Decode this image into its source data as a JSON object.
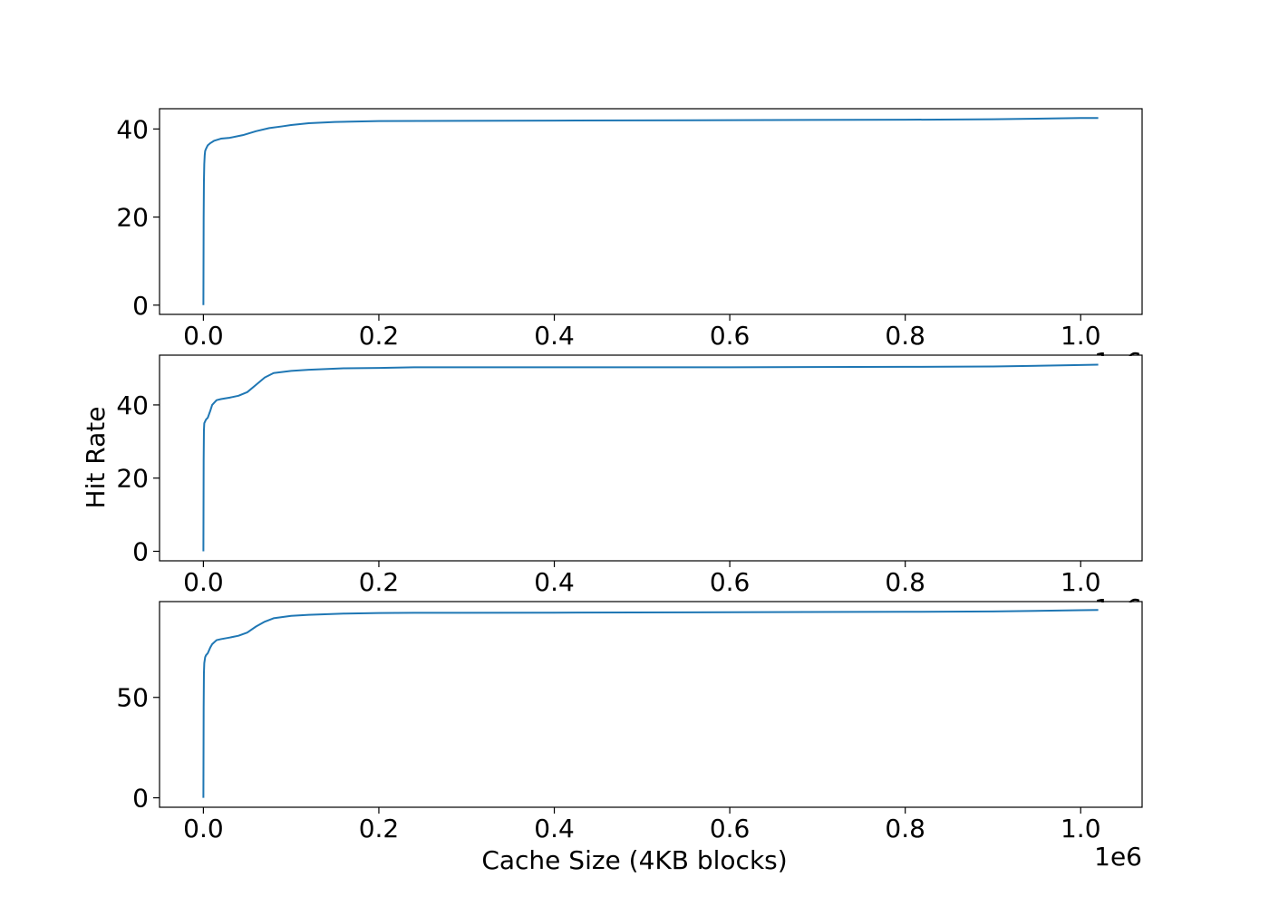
{
  "figure": {
    "xlabel": "Cache Size (4KB blocks)",
    "ylabel": "Hit Rate",
    "x_offset_label": "1e6",
    "line_color": "#1f77b4"
  },
  "chart_data": [
    {
      "type": "line",
      "xlim": [
        -0.05,
        1.07
      ],
      "ylim": [
        -2.1,
        44.6
      ],
      "xticks": [
        "0.0",
        "0.2",
        "0.4",
        "0.6",
        "0.8",
        "1.0"
      ],
      "xtick_values": [
        0.0,
        0.2,
        0.4,
        0.6,
        0.8,
        1.0
      ],
      "yticks": [
        "0",
        "20",
        "40"
      ],
      "ytick_values": [
        0,
        20,
        40
      ],
      "series": [
        {
          "x": [
            0,
            0.0003,
            0.0006,
            0.001,
            0.0015,
            0.002,
            0.003,
            0.005,
            0.008,
            0.012,
            0.02,
            0.03,
            0.045,
            0.06,
            0.075,
            0.09,
            0.1,
            0.12,
            0.15,
            0.2,
            0.4,
            0.6,
            0.8,
            0.9,
            1.0,
            1.02
          ],
          "y": [
            0,
            20,
            28,
            32,
            34,
            35,
            35.5,
            36.3,
            36.8,
            37.3,
            37.8,
            38.0,
            38.6,
            39.5,
            40.2,
            40.6,
            40.9,
            41.3,
            41.6,
            41.8,
            41.9,
            42.0,
            42.1,
            42.2,
            42.5,
            42.5
          ]
        }
      ]
    },
    {
      "type": "line",
      "xlim": [
        -0.05,
        1.07
      ],
      "ylim": [
        -2.6,
        53.6
      ],
      "xticks": [
        "0.0",
        "0.2",
        "0.4",
        "0.6",
        "0.8",
        "1.0"
      ],
      "xtick_values": [
        0.0,
        0.2,
        0.4,
        0.6,
        0.8,
        1.0
      ],
      "yticks": [
        "0",
        "20",
        "40"
      ],
      "ytick_values": [
        0,
        20,
        40
      ],
      "series": [
        {
          "x": [
            0,
            0.0003,
            0.0006,
            0.001,
            0.002,
            0.003,
            0.005,
            0.008,
            0.01,
            0.015,
            0.02,
            0.03,
            0.04,
            0.05,
            0.06,
            0.07,
            0.08,
            0.1,
            0.12,
            0.16,
            0.2,
            0.24,
            0.4,
            0.6,
            0.8,
            0.9,
            1.0,
            1.02
          ],
          "y": [
            0,
            25,
            33,
            35,
            35.5,
            36,
            36.5,
            38.5,
            40,
            41.3,
            41.6,
            42.0,
            42.5,
            43.5,
            45.5,
            47.5,
            48.7,
            49.3,
            49.6,
            50.0,
            50.1,
            50.3,
            50.3,
            50.3,
            50.4,
            50.5,
            50.9,
            51.0
          ]
        }
      ]
    },
    {
      "type": "line",
      "xlim": [
        -0.05,
        1.07
      ],
      "ylim": [
        -4.7,
        97.7
      ],
      "xticks": [
        "0.0",
        "0.2",
        "0.4",
        "0.6",
        "0.8",
        "1.0"
      ],
      "xtick_values": [
        0.0,
        0.2,
        0.4,
        0.6,
        0.8,
        1.0
      ],
      "yticks": [
        "0",
        "50"
      ],
      "ytick_values": [
        0,
        50
      ],
      "series": [
        {
          "x": [
            0,
            0.0003,
            0.0006,
            0.001,
            0.002,
            0.003,
            0.005,
            0.008,
            0.01,
            0.015,
            0.02,
            0.03,
            0.04,
            0.05,
            0.06,
            0.07,
            0.08,
            0.1,
            0.12,
            0.16,
            0.2,
            0.24,
            0.4,
            0.6,
            0.8,
            0.9,
            1.0,
            1.02
          ],
          "y": [
            0,
            45,
            62,
            67,
            70,
            71,
            72,
            75,
            76.5,
            78.5,
            79,
            79.8,
            80.7,
            82.3,
            85.3,
            87.7,
            89.4,
            90.6,
            91.1,
            91.7,
            92.0,
            92.1,
            92.2,
            92.4,
            92.6,
            92.8,
            93.4,
            93.5
          ]
        }
      ]
    }
  ]
}
